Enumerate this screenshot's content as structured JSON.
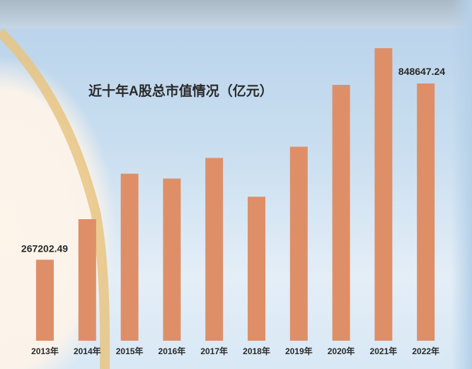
{
  "chart_data": {
    "type": "bar",
    "title": "近十年A股总市值情况（亿元）",
    "xlabel": "",
    "ylabel": "",
    "categories": [
      "2013年",
      "2014年",
      "2015年",
      "2016年",
      "2017年",
      "2018年",
      "2019年",
      "2020年",
      "2021年",
      "2022年"
    ],
    "values": [
      267202.49,
      401000,
      551000,
      535000,
      603000,
      475000,
      640000,
      844000,
      965000,
      848647.24
    ],
    "data_labels": {
      "0": "267202.49",
      "9": "848647.24"
    },
    "ylim": [
      0,
      1000000
    ],
    "grid": false,
    "legend": "none",
    "bar_color": "#de8f68"
  }
}
